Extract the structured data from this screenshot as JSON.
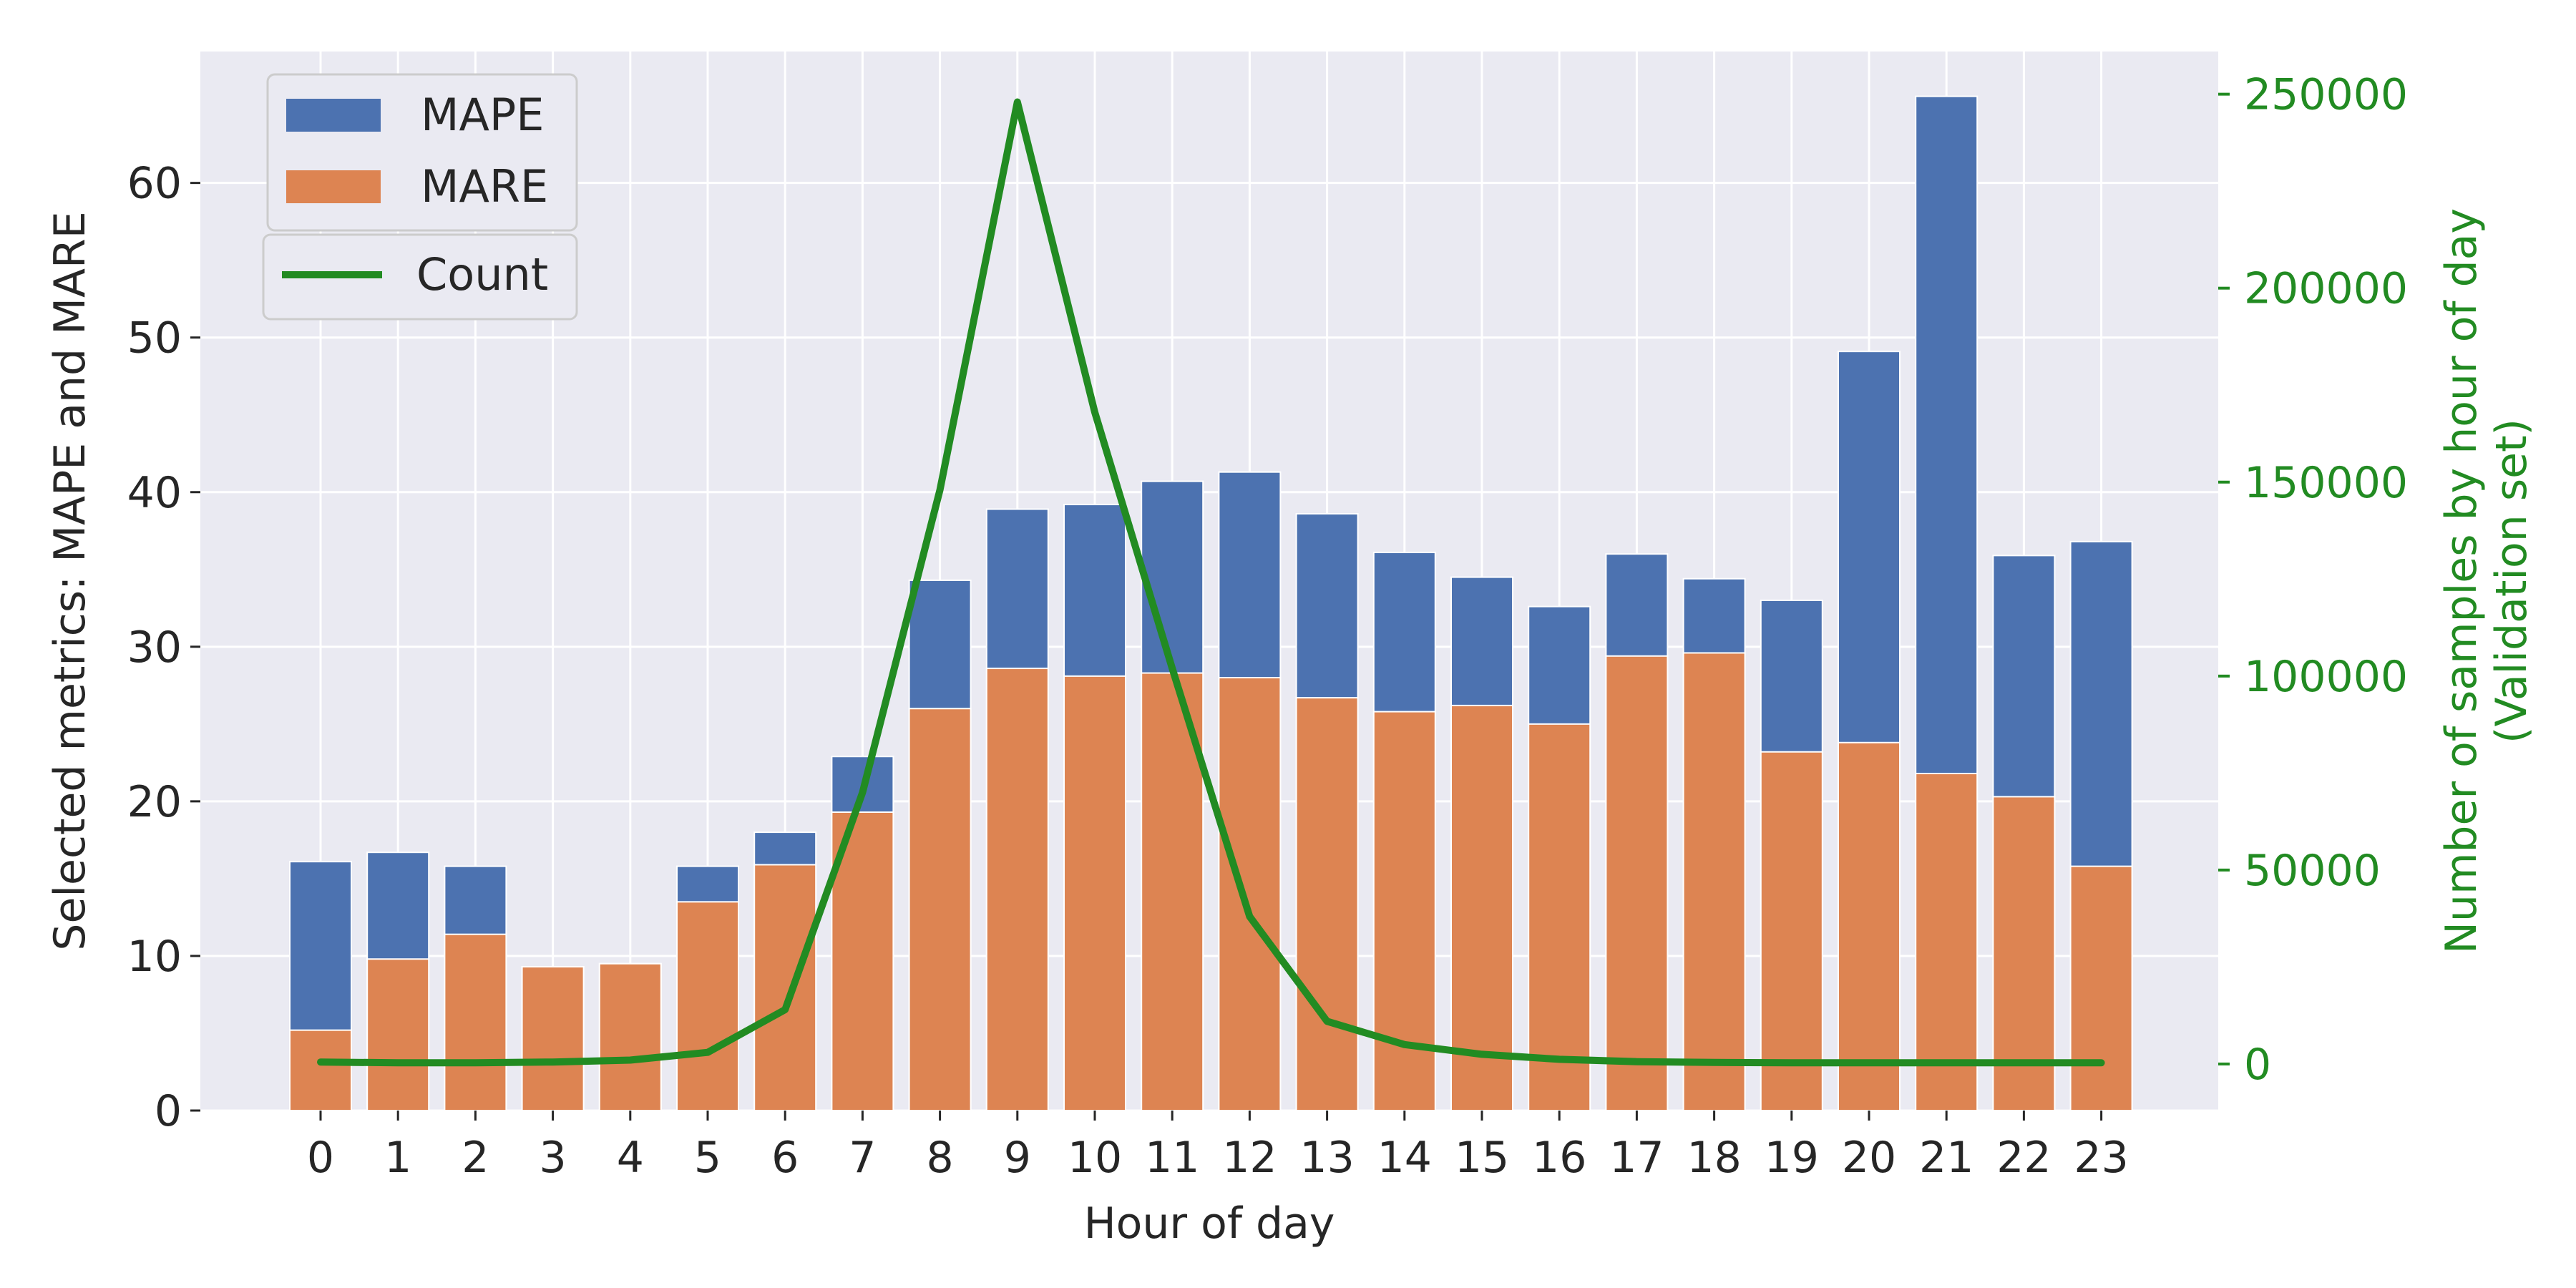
{
  "chart_data": {
    "type": "bar",
    "xlabel": "Hour of day",
    "ylabel": "Selected metrics: MAPE and MARE",
    "y2label_lines": [
      "Number of samples by hour of day",
      "(Validation set)"
    ],
    "categories": [
      "0",
      "1",
      "2",
      "3",
      "4",
      "5",
      "6",
      "7",
      "8",
      "9",
      "10",
      "11",
      "12",
      "13",
      "14",
      "15",
      "16",
      "17",
      "18",
      "19",
      "20",
      "21",
      "22",
      "23"
    ],
    "ylim": [
      0,
      68.5
    ],
    "yticks": [
      0,
      10,
      20,
      30,
      40,
      50,
      60
    ],
    "y2lim": [
      -12000,
      261000
    ],
    "y2ticks": [
      0,
      50000,
      100000,
      150000,
      200000,
      250000
    ],
    "grid": true,
    "legend_placement": "top-left",
    "series": [
      {
        "name": "MAPE",
        "kind": "bar",
        "color": "#4c72b0",
        "values": [
          16.1,
          16.7,
          15.8,
          9.3,
          9.5,
          15.8,
          18.0,
          22.9,
          34.3,
          38.9,
          39.2,
          40.7,
          41.3,
          38.6,
          36.1,
          34.5,
          32.6,
          36.0,
          34.4,
          33.0,
          49.1,
          65.6,
          35.9,
          36.8
        ]
      },
      {
        "name": "MARE",
        "kind": "bar",
        "color": "#dd8452",
        "values": [
          5.2,
          9.8,
          11.4,
          9.3,
          9.5,
          13.5,
          15.9,
          19.3,
          26.0,
          28.6,
          28.1,
          28.3,
          28.0,
          26.7,
          25.8,
          26.2,
          25.0,
          29.4,
          29.6,
          23.2,
          23.8,
          21.8,
          20.3,
          15.8
        ]
      },
      {
        "name": "Count",
        "kind": "line",
        "axis": "right",
        "color": "#228b22",
        "values": [
          500,
          300,
          300,
          500,
          1000,
          3000,
          14000,
          70000,
          148000,
          248000,
          168000,
          102000,
          38000,
          11000,
          5000,
          2500,
          1200,
          600,
          400,
          300,
          300,
          300,
          300,
          300
        ]
      }
    ]
  }
}
